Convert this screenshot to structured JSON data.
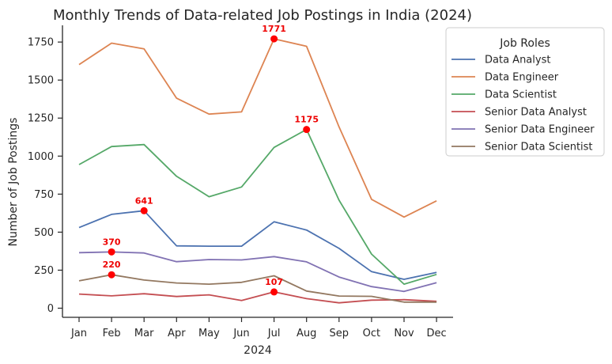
{
  "chart_data": {
    "type": "line",
    "title": "Monthly Trends of Data-related Job Postings in India (2024)",
    "xlabel": "2024",
    "ylabel": "Number of Job Postings",
    "categories": [
      "Jan",
      "Feb",
      "Mar",
      "Apr",
      "May",
      "Jun",
      "Jul",
      "Aug",
      "Sep",
      "Oct",
      "Nov",
      "Dec"
    ],
    "ylim": [
      -60,
      1860
    ],
    "yticks": [
      0,
      250,
      500,
      750,
      1000,
      1250,
      1500,
      1750
    ],
    "grid": false,
    "legend": {
      "title": "Job Roles",
      "placement": "upper right, outside the axes"
    },
    "series": [
      {
        "name": "Data Analyst",
        "color": "#4c72b0",
        "values": [
          530,
          617,
          641,
          410,
          408,
          408,
          568,
          514,
          393,
          240,
          190,
          235
        ]
      },
      {
        "name": "Data Engineer",
        "color": "#dd8452",
        "values": [
          1602,
          1743,
          1705,
          1381,
          1276,
          1291,
          1771,
          1722,
          1192,
          716,
          599,
          706
        ]
      },
      {
        "name": "Data Scientist",
        "color": "#55a868",
        "values": [
          944,
          1063,
          1076,
          867,
          733,
          797,
          1057,
          1175,
          710,
          356,
          158,
          222
        ]
      },
      {
        "name": "Senior Data Analyst",
        "color": "#c44e52",
        "values": [
          93,
          81,
          95,
          77,
          88,
          51,
          107,
          63,
          35,
          53,
          56,
          45
        ]
      },
      {
        "name": "Senior Data Engineer",
        "color": "#8172b3",
        "values": [
          365,
          370,
          363,
          306,
          320,
          317,
          339,
          305,
          205,
          142,
          110,
          168
        ]
      },
      {
        "name": "Senior Data Scientist",
        "color": "#937860",
        "values": [
          180,
          220,
          185,
          166,
          158,
          170,
          213,
          113,
          80,
          78,
          40,
          40
        ]
      }
    ],
    "annotations": [
      {
        "series": "Data Engineer",
        "x": "Jul",
        "value": 1771,
        "label": "1771"
      },
      {
        "series": "Data Scientist",
        "x": "Aug",
        "value": 1175,
        "label": "1175"
      },
      {
        "series": "Data Analyst",
        "x": "Mar",
        "value": 641,
        "label": "641"
      },
      {
        "series": "Senior Data Engineer",
        "x": "Feb",
        "value": 370,
        "label": "370"
      },
      {
        "series": "Senior Data Scientist",
        "x": "Feb",
        "value": 220,
        "label": "220"
      },
      {
        "series": "Senior Data Analyst",
        "x": "Jul",
        "value": 107,
        "label": "107"
      }
    ],
    "annotation_color": "#ff0000"
  }
}
